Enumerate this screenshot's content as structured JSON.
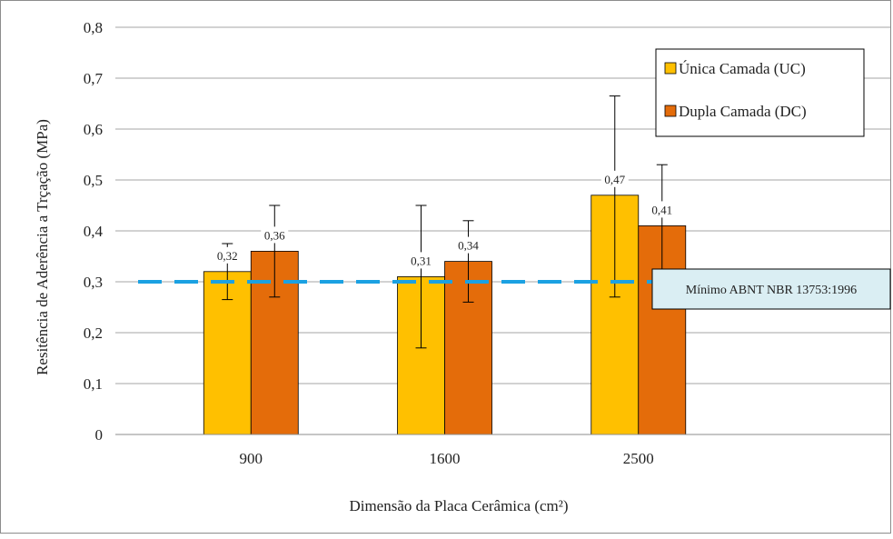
{
  "chart_data": {
    "type": "bar",
    "title": "",
    "xlabel": "Dimensão da Placa Cerâmica (cm²)",
    "ylabel": "Resitência de Aderência a Trçação (MPa)",
    "ylim": [
      0,
      0.8
    ],
    "yticks": [
      "0",
      "0,1",
      "0,2",
      "0,3",
      "0,4",
      "0,5",
      "0,6",
      "0,7",
      "0,8"
    ],
    "ytick_values": [
      0,
      0.1,
      0.2,
      0.3,
      0.4,
      0.5,
      0.6,
      0.7,
      0.8
    ],
    "categories": [
      "900",
      "1600",
      "2500"
    ],
    "grid": true,
    "legend_position": "top-right",
    "series": [
      {
        "name": "Única Camada (UC)",
        "color": "#FFC000",
        "values": [
          0.32,
          0.31,
          0.47
        ],
        "labels": [
          "0,32",
          "0,31",
          "0,47"
        ],
        "error_low": [
          0.265,
          0.17,
          0.27
        ],
        "error_high": [
          0.375,
          0.45,
          0.665
        ]
      },
      {
        "name": "Dupla Camada (DC)",
        "color": "#E46C0A",
        "values": [
          0.36,
          0.34,
          0.41
        ],
        "labels": [
          "0,36",
          "0,34",
          "0,41"
        ],
        "error_low": [
          0.27,
          0.26,
          0.29
        ],
        "error_high": [
          0.45,
          0.42,
          0.53
        ]
      }
    ],
    "reference_line": {
      "value": 0.3,
      "label": "Mínimo ABNT NBR 13753:1996",
      "color": "#1BA1E2",
      "box_color": "#DAEEF3"
    }
  }
}
